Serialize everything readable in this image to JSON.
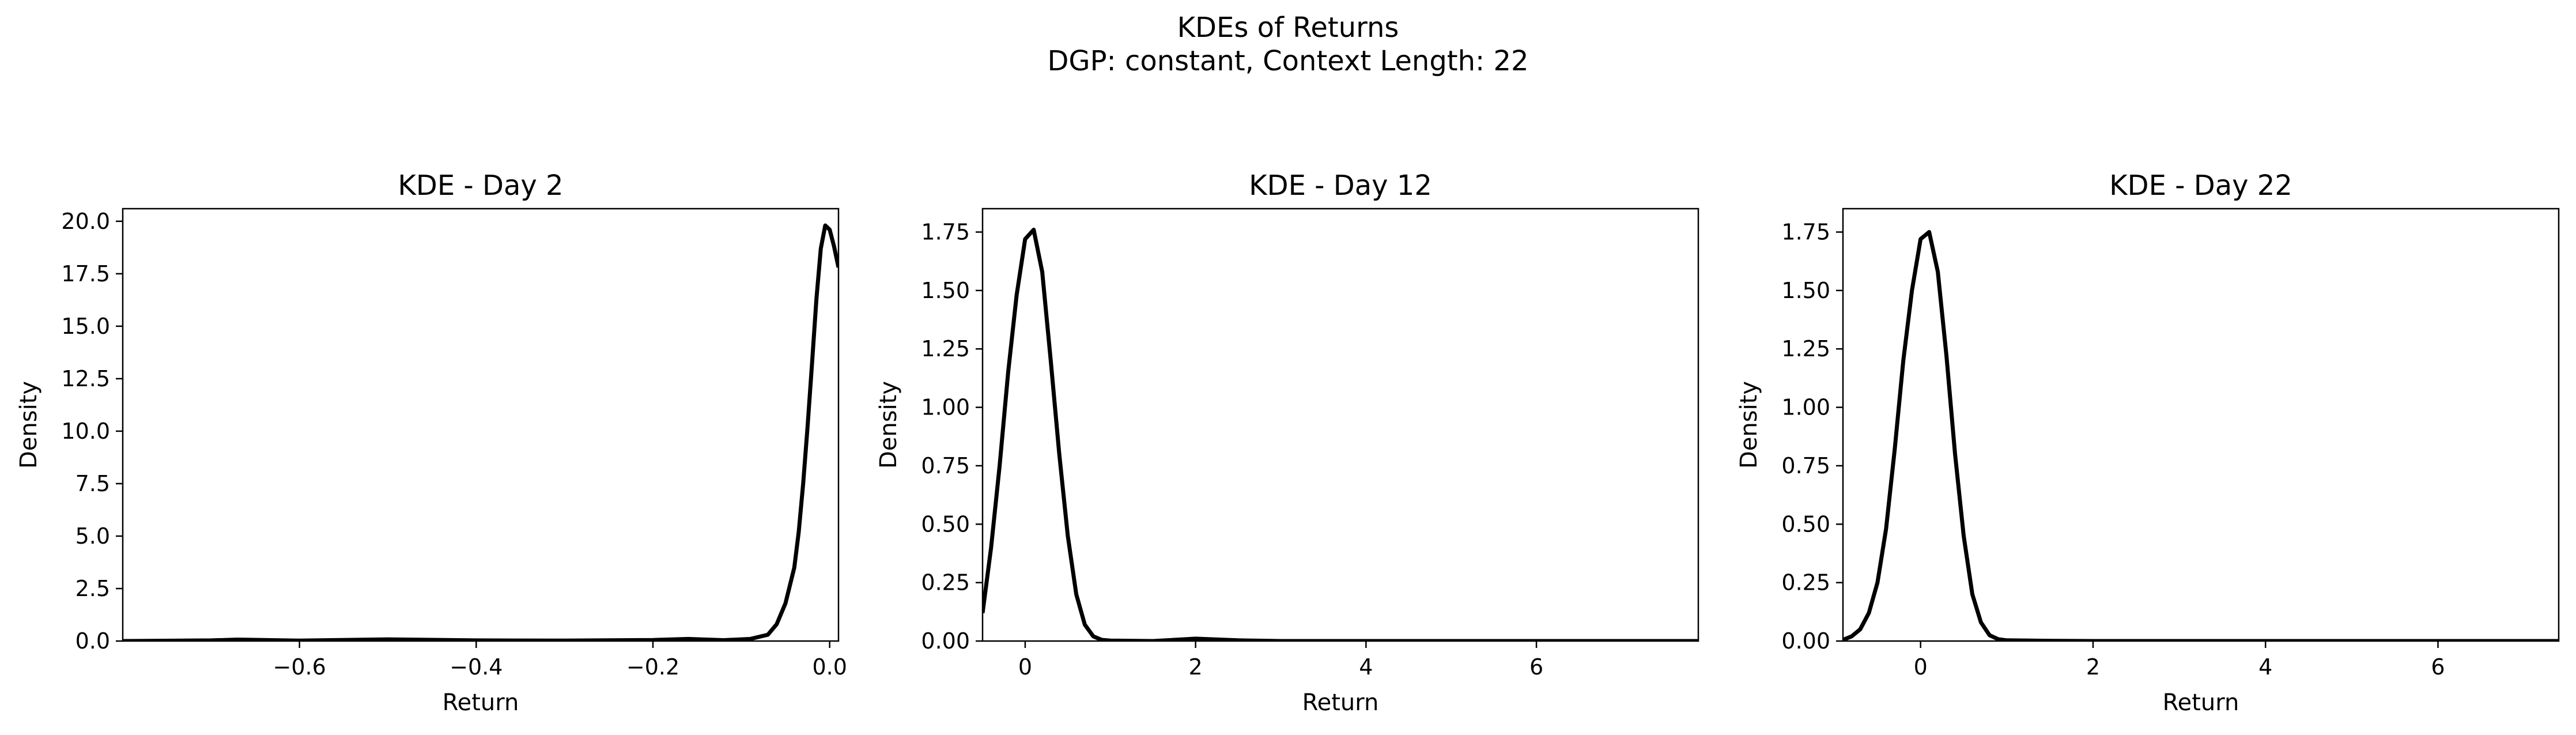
{
  "figure": {
    "title_line1": "KDEs of Returns",
    "title_line2": "DGP: constant, Context Length: 22"
  },
  "chart_data": [
    {
      "type": "line",
      "title": "KDE - Day 2",
      "xlabel": "Return",
      "ylabel": "Density",
      "xlim": [
        -0.8,
        0.01
      ],
      "ylim": [
        0,
        20.6
      ],
      "xticks": [
        -0.6,
        -0.4,
        -0.2,
        0.0
      ],
      "xtick_labels": [
        "−0.6",
        "−0.4",
        "−0.2",
        "0.0"
      ],
      "yticks": [
        0,
        2.5,
        5,
        7.5,
        10,
        12.5,
        15,
        17.5,
        20
      ],
      "ytick_labels": [
        "0.0",
        "2.5",
        "5.0",
        "7.5",
        "10.0",
        "12.5",
        "15.0",
        "17.5",
        "20.0"
      ],
      "color": "#000000",
      "series": [
        {
          "x": [
            -0.8,
            -0.7,
            -0.67,
            -0.6,
            -0.5,
            -0.4,
            -0.3,
            -0.2,
            -0.16,
            -0.12,
            -0.09,
            -0.07,
            -0.06,
            -0.05,
            -0.04,
            -0.035,
            -0.03,
            -0.025,
            -0.02,
            -0.015,
            -0.01,
            -0.005,
            0.0,
            0.005,
            0.01
          ],
          "y": [
            0.0,
            0.03,
            0.07,
            0.02,
            0.08,
            0.03,
            0.02,
            0.05,
            0.1,
            0.04,
            0.1,
            0.3,
            0.8,
            1.8,
            3.5,
            5.2,
            7.5,
            10.2,
            13.2,
            16.3,
            18.7,
            19.8,
            19.6,
            18.8,
            17.8
          ]
        }
      ]
    },
    {
      "type": "line",
      "title": "KDE - Day 12",
      "xlabel": "Return",
      "ylabel": "Density",
      "xlim": [
        -0.5,
        7.9
      ],
      "ylim": [
        0,
        1.85
      ],
      "xticks": [
        0,
        2,
        4,
        6
      ],
      "xtick_labels": [
        "0",
        "2",
        "4",
        "6"
      ],
      "yticks": [
        0,
        0.25,
        0.5,
        0.75,
        1.0,
        1.25,
        1.5,
        1.75
      ],
      "ytick_labels": [
        "0.00",
        "0.25",
        "0.50",
        "0.75",
        "1.00",
        "1.25",
        "1.50",
        "1.75"
      ],
      "color": "#000000",
      "series": [
        {
          "x": [
            -0.5,
            -0.4,
            -0.3,
            -0.2,
            -0.1,
            0.0,
            0.1,
            0.2,
            0.3,
            0.4,
            0.5,
            0.6,
            0.7,
            0.8,
            0.9,
            1.0,
            1.5,
            2.0,
            2.5,
            3.0,
            4.0,
            5.0,
            6.0,
            7.0,
            7.9
          ],
          "y": [
            0.12,
            0.4,
            0.75,
            1.15,
            1.48,
            1.72,
            1.76,
            1.58,
            1.2,
            0.8,
            0.45,
            0.2,
            0.07,
            0.02,
            0.005,
            0.002,
            0.0,
            0.01,
            0.003,
            0.0,
            0.0,
            0.0,
            0.0,
            0.0,
            0.0
          ]
        }
      ]
    },
    {
      "type": "line",
      "title": "KDE - Day 22",
      "xlabel": "Return",
      "ylabel": "Density",
      "xlim": [
        -0.9,
        7.4
      ],
      "ylim": [
        0,
        1.85
      ],
      "xticks": [
        0,
        2,
        4,
        6
      ],
      "xtick_labels": [
        "0",
        "2",
        "4",
        "6"
      ],
      "yticks": [
        0,
        0.25,
        0.5,
        0.75,
        1.0,
        1.25,
        1.5,
        1.75
      ],
      "ytick_labels": [
        "0.00",
        "0.25",
        "0.50",
        "0.75",
        "1.00",
        "1.25",
        "1.50",
        "1.75"
      ],
      "color": "#000000",
      "series": [
        {
          "x": [
            -0.9,
            -0.8,
            -0.7,
            -0.6,
            -0.5,
            -0.4,
            -0.3,
            -0.2,
            -0.1,
            0.0,
            0.1,
            0.2,
            0.3,
            0.4,
            0.5,
            0.6,
            0.7,
            0.8,
            0.9,
            1.0,
            1.5,
            2.0,
            3.0,
            5.0,
            7.4
          ],
          "y": [
            0.005,
            0.02,
            0.05,
            0.12,
            0.25,
            0.48,
            0.82,
            1.2,
            1.5,
            1.72,
            1.75,
            1.58,
            1.22,
            0.8,
            0.45,
            0.2,
            0.08,
            0.025,
            0.008,
            0.003,
            0.001,
            0.0,
            0.0,
            0.0,
            0.0
          ]
        }
      ]
    }
  ]
}
